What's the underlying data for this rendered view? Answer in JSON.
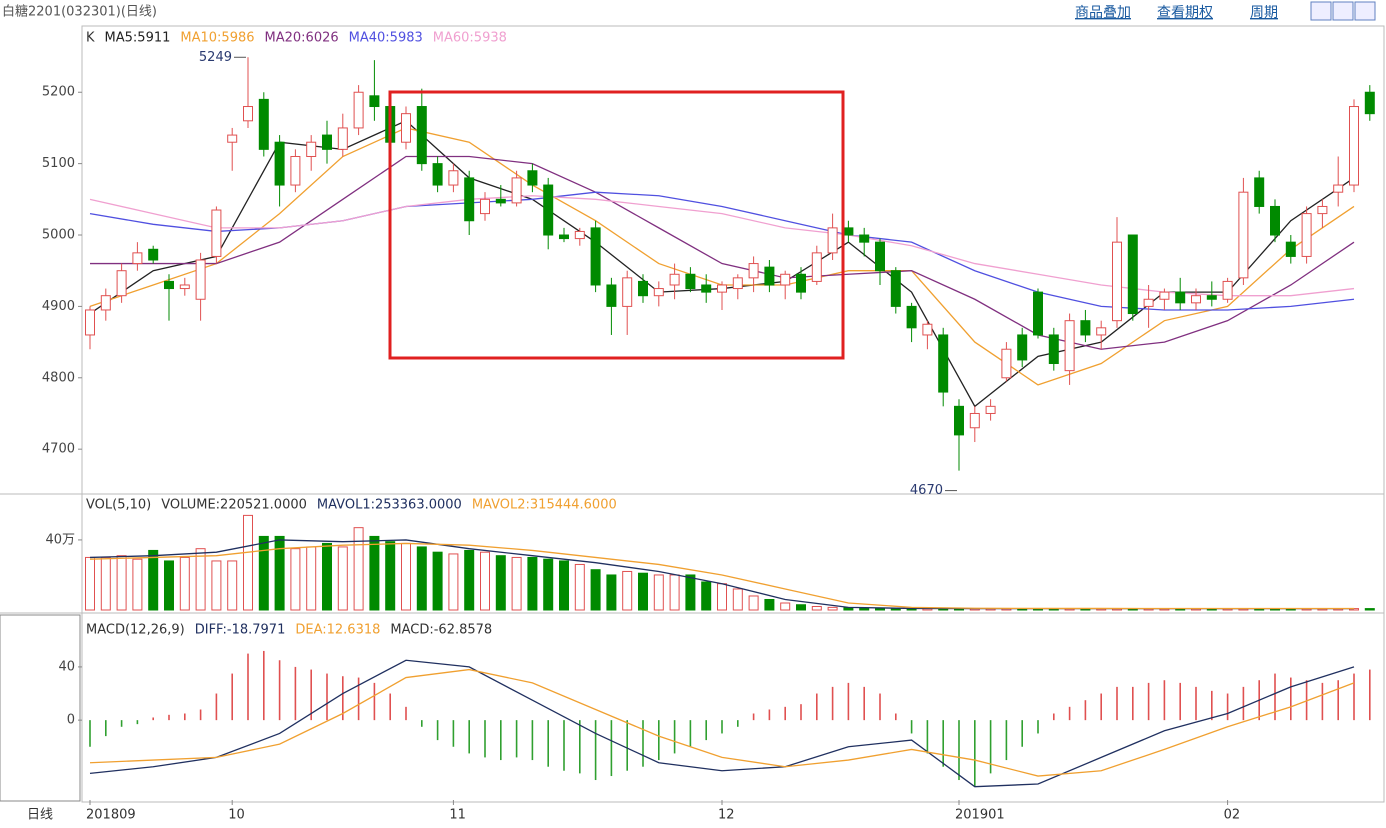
{
  "header": {
    "title": "白糖2201(032301)(日线)",
    "links": [
      "商品叠加",
      "查看期权",
      "周期"
    ],
    "period": "日线"
  },
  "chart_data": [
    {
      "type": "candlestick",
      "label": "K",
      "up_color": "#e05050",
      "down_color": "#008a00",
      "ylim": [
        4640,
        5290
      ],
      "yticks": [
        4700,
        4800,
        4900,
        5000,
        5100,
        5200
      ],
      "xticks": [
        {
          "value": 0,
          "label": "201809"
        },
        {
          "value": 9,
          "label": "10"
        },
        {
          "value": 23,
          "label": "11"
        },
        {
          "value": 40,
          "label": "12"
        },
        {
          "value": 55,
          "label": "201901"
        },
        {
          "value": 72,
          "label": "02"
        }
      ],
      "annotations": {
        "max": 5249,
        "min": 4670
      },
      "candles": [
        [
          4860,
          4900,
          4840,
          4895
        ],
        [
          4895,
          4925,
          4880,
          4915
        ],
        [
          4915,
          4960,
          4905,
          4950
        ],
        [
          4960,
          4990,
          4950,
          4975
        ],
        [
          4980,
          4985,
          4960,
          4965
        ],
        [
          4935,
          4945,
          4880,
          4925
        ],
        [
          4925,
          4940,
          4915,
          4930
        ],
        [
          4910,
          4975,
          4880,
          4965
        ],
        [
          4970,
          5040,
          4960,
          5035
        ],
        [
          5130,
          5150,
          5090,
          5140
        ],
        [
          5160,
          5249,
          5150,
          5180
        ],
        [
          5190,
          5200,
          5110,
          5120
        ],
        [
          5130,
          5140,
          5040,
          5070
        ],
        [
          5070,
          5120,
          5060,
          5110
        ],
        [
          5110,
          5140,
          5090,
          5130
        ],
        [
          5140,
          5160,
          5100,
          5120
        ],
        [
          5120,
          5170,
          5110,
          5150
        ],
        [
          5150,
          5210,
          5140,
          5200
        ],
        [
          5195,
          5245,
          5160,
          5180
        ],
        [
          5180,
          5190,
          5120,
          5130
        ],
        [
          5130,
          5180,
          5120,
          5170
        ],
        [
          5180,
          5205,
          5090,
          5100
        ],
        [
          5100,
          5110,
          5060,
          5070
        ],
        [
          5070,
          5100,
          5060,
          5090
        ],
        [
          5080,
          5090,
          5000,
          5020
        ],
        [
          5030,
          5060,
          5020,
          5050
        ],
        [
          5050,
          5070,
          5040,
          5045
        ],
        [
          5045,
          5090,
          5040,
          5080
        ],
        [
          5090,
          5100,
          5060,
          5070
        ],
        [
          5070,
          5080,
          4980,
          5000
        ],
        [
          5000,
          5010,
          4990,
          4995
        ],
        [
          4995,
          5010,
          4985,
          5005
        ],
        [
          5010,
          5020,
          4920,
          4930
        ],
        [
          4930,
          4940,
          4860,
          4900
        ],
        [
          4900,
          4950,
          4860,
          4940
        ],
        [
          4935,
          4945,
          4905,
          4915
        ],
        [
          4915,
          4935,
          4900,
          4925
        ],
        [
          4930,
          4960,
          4910,
          4945
        ],
        [
          4945,
          4955,
          4920,
          4925
        ],
        [
          4930,
          4945,
          4905,
          4920
        ],
        [
          4920,
          4935,
          4895,
          4930
        ],
        [
          4925,
          4945,
          4910,
          4940
        ],
        [
          4940,
          4970,
          4920,
          4960
        ],
        [
          4955,
          4965,
          4920,
          4930
        ],
        [
          4930,
          4950,
          4910,
          4945
        ],
        [
          4945,
          4955,
          4910,
          4920
        ],
        [
          4935,
          4985,
          4930,
          4975
        ],
        [
          4975,
          5030,
          4965,
          5010
        ],
        [
          5010,
          5020,
          4990,
          5000
        ],
        [
          5000,
          5010,
          4970,
          4990
        ],
        [
          4990,
          4995,
          4930,
          4950
        ],
        [
          4950,
          4955,
          4890,
          4900
        ],
        [
          4900,
          4905,
          4850,
          4870
        ],
        [
          4860,
          4880,
          4840,
          4875
        ],
        [
          4860,
          4870,
          4760,
          4780
        ],
        [
          4760,
          4770,
          4670,
          4720
        ],
        [
          4730,
          4760,
          4710,
          4750
        ],
        [
          4750,
          4770,
          4740,
          4760
        ],
        [
          4800,
          4850,
          4795,
          4840
        ],
        [
          4860,
          4870,
          4815,
          4825
        ],
        [
          4920,
          4925,
          4855,
          4860
        ],
        [
          4860,
          4870,
          4810,
          4820
        ],
        [
          4810,
          4890,
          4790,
          4880
        ],
        [
          4880,
          4895,
          4850,
          4860
        ],
        [
          4860,
          4880,
          4840,
          4870
        ],
        [
          4880,
          5025,
          4870,
          4990
        ],
        [
          5000,
          5000,
          4880,
          4890
        ],
        [
          4900,
          4930,
          4870,
          4910
        ],
        [
          4910,
          4925,
          4895,
          4920
        ],
        [
          4920,
          4940,
          4895,
          4905
        ],
        [
          4905,
          4925,
          4895,
          4915
        ],
        [
          4915,
          4935,
          4900,
          4910
        ],
        [
          4910,
          4940,
          4905,
          4935
        ],
        [
          4940,
          5080,
          4930,
          5060
        ],
        [
          5080,
          5090,
          5030,
          5040
        ],
        [
          5040,
          5050,
          4990,
          5000
        ],
        [
          4990,
          5000,
          4960,
          4970
        ],
        [
          4970,
          5040,
          4960,
          5030
        ],
        [
          5030,
          5050,
          5010,
          5040
        ],
        [
          5060,
          5110,
          5040,
          5070
        ],
        [
          5070,
          5190,
          5060,
          5180
        ],
        [
          5200,
          5210,
          5160,
          5170
        ]
      ],
      "series": [
        {
          "name": "MA5:5911",
          "color": "#222222",
          "x": [
            0,
            4,
            8,
            12,
            16,
            20,
            24,
            28,
            32,
            36,
            40,
            44,
            48,
            52,
            56,
            60,
            64,
            68,
            72,
            76,
            80
          ],
          "values": [
            4890,
            4950,
            4970,
            5130,
            5120,
            5160,
            5080,
            5050,
            4990,
            4920,
            4925,
            4935,
            4990,
            4920,
            4760,
            4830,
            4850,
            4920,
            4920,
            5020,
            5080
          ]
        },
        {
          "name": "MA10:5986",
          "color": "#f0a030",
          "x": [
            0,
            4,
            8,
            12,
            16,
            20,
            24,
            28,
            32,
            36,
            40,
            44,
            48,
            52,
            56,
            60,
            64,
            68,
            72,
            76,
            80
          ],
          "values": [
            4900,
            4930,
            4960,
            5030,
            5110,
            5150,
            5130,
            5070,
            5020,
            4960,
            4930,
            4930,
            4950,
            4950,
            4850,
            4790,
            4820,
            4880,
            4900,
            4980,
            5040
          ]
        },
        {
          "name": "MA20:6026",
          "color": "#803080",
          "x": [
            0,
            4,
            8,
            12,
            16,
            20,
            24,
            28,
            32,
            36,
            40,
            44,
            48,
            52,
            56,
            60,
            64,
            68,
            72,
            76,
            80
          ],
          "values": [
            4960,
            4960,
            4960,
            4990,
            5050,
            5110,
            5110,
            5100,
            5060,
            5010,
            4960,
            4940,
            4945,
            4950,
            4910,
            4860,
            4840,
            4850,
            4880,
            4930,
            4990
          ]
        },
        {
          "name": "MA40:5983",
          "color": "#5050e0",
          "x": [
            0,
            4,
            8,
            12,
            16,
            20,
            24,
            28,
            32,
            36,
            40,
            44,
            48,
            52,
            56,
            60,
            64,
            68,
            72,
            76,
            80
          ],
          "values": [
            5030,
            5015,
            5005,
            5010,
            5020,
            5040,
            5045,
            5050,
            5060,
            5055,
            5040,
            5020,
            5000,
            4990,
            4950,
            4920,
            4900,
            4895,
            4895,
            4900,
            4910
          ]
        },
        {
          "name": "MA60:5938",
          "color": "#f0a0d0",
          "x": [
            0,
            4,
            8,
            12,
            16,
            20,
            24,
            28,
            32,
            36,
            40,
            44,
            48,
            52,
            56,
            60,
            64,
            68,
            72,
            76,
            80
          ],
          "values": [
            5050,
            5030,
            5010,
            5010,
            5020,
            5040,
            5050,
            5055,
            5050,
            5040,
            5030,
            5010,
            5000,
            4985,
            4960,
            4945,
            4930,
            4920,
            4915,
            4915,
            4925
          ]
        }
      ]
    },
    {
      "type": "volume",
      "label": "VOL(5,10)",
      "bar_name": "VOLUME:220521.0000",
      "ylim": [
        0,
        645000
      ],
      "yticks": [
        {
          "value": 400000,
          "label": "40万"
        }
      ],
      "values": [
        300000,
        300000,
        310000,
        290000,
        340000,
        280000,
        300000,
        350000,
        280000,
        280000,
        540000,
        420000,
        420000,
        350000,
        360000,
        380000,
        360000,
        470000,
        420000,
        390000,
        380000,
        360000,
        330000,
        320000,
        340000,
        330000,
        310000,
        300000,
        300000,
        290000,
        280000,
        260000,
        230000,
        200000,
        220000,
        210000,
        200000,
        200000,
        200000,
        160000,
        150000,
        120000,
        80000,
        60000,
        40000,
        30000,
        20000,
        15000,
        12000,
        10000,
        8000,
        8000,
        8000,
        8000,
        8000,
        8000,
        8000,
        8000,
        8000,
        8000,
        8000,
        8000,
        8000,
        8000,
        8000,
        8000,
        8000,
        8000,
        8000,
        8000,
        8000,
        8000,
        8000,
        8000,
        8000,
        8000,
        8000,
        8000,
        8000,
        8000,
        8000,
        8000
      ],
      "series": [
        {
          "name": "MAVOL1:253363.0000",
          "color": "#203060",
          "x": [
            0,
            4,
            8,
            12,
            16,
            20,
            24,
            28,
            32,
            36,
            40,
            44,
            48,
            52,
            56,
            60,
            64,
            68,
            72,
            76,
            80
          ],
          "values": [
            300000,
            310000,
            330000,
            400000,
            390000,
            400000,
            350000,
            310000,
            270000,
            220000,
            150000,
            60000,
            15000,
            9000,
            8000,
            8000,
            8000,
            8000,
            8000,
            8000,
            8000
          ]
        },
        {
          "name": "MAVOL2:315444.6000",
          "color": "#f0a030",
          "x": [
            0,
            4,
            8,
            12,
            16,
            20,
            24,
            28,
            32,
            36,
            40,
            44,
            48,
            52,
            56,
            60,
            64,
            68,
            72,
            76,
            80
          ],
          "values": [
            290000,
            300000,
            310000,
            350000,
            370000,
            380000,
            370000,
            340000,
            300000,
            260000,
            200000,
            120000,
            40000,
            15000,
            10000,
            9000,
            9000,
            8500,
            8500,
            8500,
            8500
          ]
        }
      ]
    },
    {
      "type": "macd",
      "label": "MACD(12,26,9)",
      "bar_name": "MACD:-62.8578",
      "up_color": "#e05050",
      "down_color": "#30a030",
      "ylim": [
        -60,
        79
      ],
      "yticks": [
        0,
        40
      ],
      "values": [
        -20,
        -12,
        -5,
        -3,
        2,
        4,
        5,
        8,
        20,
        35,
        50,
        52,
        45,
        40,
        38,
        35,
        33,
        32,
        28,
        20,
        10,
        -5,
        -15,
        -20,
        -25,
        -28,
        -30,
        -28,
        -30,
        -35,
        -38,
        -40,
        -45,
        -42,
        -38,
        -35,
        -30,
        -25,
        -20,
        -15,
        -10,
        -5,
        5,
        8,
        10,
        12,
        20,
        25,
        28,
        25,
        20,
        5,
        -10,
        -25,
        -35,
        -45,
        -50,
        -40,
        -30,
        -20,
        -10,
        5,
        10,
        15,
        20,
        25,
        25,
        28,
        30,
        28,
        25,
        22,
        20,
        25,
        30,
        35,
        32,
        30,
        28,
        30,
        35,
        38
      ],
      "series": [
        {
          "name": "DIFF:-18.7971",
          "color": "#203060",
          "x": [
            0,
            4,
            8,
            12,
            16,
            20,
            24,
            28,
            32,
            36,
            40,
            44,
            48,
            52,
            56,
            60,
            64,
            68,
            72,
            76,
            80
          ],
          "values": [
            -40,
            -35,
            -28,
            -10,
            20,
            45,
            40,
            15,
            -10,
            -32,
            -38,
            -35,
            -20,
            -15,
            -50,
            -48,
            -28,
            -8,
            5,
            25,
            40
          ]
        },
        {
          "name": "DEA:12.6318",
          "color": "#f0a030",
          "x": [
            0,
            4,
            8,
            12,
            16,
            20,
            24,
            28,
            32,
            36,
            40,
            44,
            48,
            52,
            56,
            60,
            64,
            68,
            72,
            76,
            80
          ],
          "values": [
            -32,
            -30,
            -28,
            -18,
            5,
            32,
            38,
            28,
            8,
            -12,
            -28,
            -35,
            -30,
            -22,
            -30,
            -42,
            -38,
            -22,
            -5,
            10,
            28
          ]
        }
      ]
    }
  ]
}
